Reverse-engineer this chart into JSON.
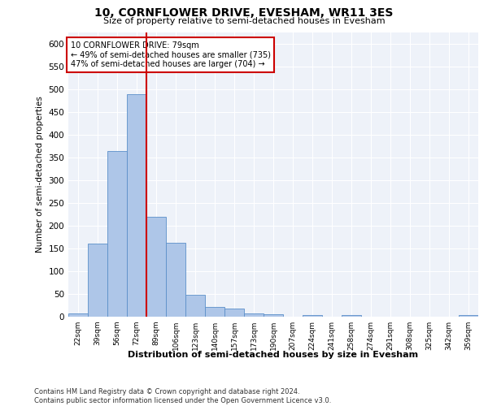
{
  "title": "10, CORNFLOWER DRIVE, EVESHAM, WR11 3ES",
  "subtitle": "Size of property relative to semi-detached houses in Evesham",
  "xlabel": "Distribution of semi-detached houses by size in Evesham",
  "ylabel": "Number of semi-detached properties",
  "footer_line1": "Contains HM Land Registry data © Crown copyright and database right 2024.",
  "footer_line2": "Contains public sector information licensed under the Open Government Licence v3.0.",
  "annotation_title": "10 CORNFLOWER DRIVE: 79sqm",
  "annotation_line1": "← 49% of semi-detached houses are smaller (735)",
  "annotation_line2": "47% of semi-detached houses are larger (704) →",
  "categories": [
    "22sqm",
    "39sqm",
    "56sqm",
    "72sqm",
    "89sqm",
    "106sqm",
    "123sqm",
    "140sqm",
    "157sqm",
    "173sqm",
    "190sqm",
    "207sqm",
    "224sqm",
    "241sqm",
    "258sqm",
    "274sqm",
    "291sqm",
    "308sqm",
    "325sqm",
    "342sqm",
    "359sqm"
  ],
  "values": [
    8,
    160,
    365,
    490,
    220,
    163,
    48,
    22,
    17,
    8,
    5,
    0,
    4,
    0,
    3,
    0,
    0,
    0,
    0,
    0,
    4
  ],
  "bar_color": "#aec6e8",
  "bar_edge_color": "#5b8fc9",
  "vline_color": "#cc0000",
  "vline_x": 3.5,
  "ylim": [
    0,
    625
  ],
  "yticks": [
    0,
    50,
    100,
    150,
    200,
    250,
    300,
    350,
    400,
    450,
    500,
    550,
    600
  ],
  "annotation_box_facecolor": "#ffffff",
  "annotation_box_edgecolor": "#cc0000",
  "plot_bg_color": "#eef2f9",
  "grid_color": "#ffffff",
  "title_fontsize": 10,
  "subtitle_fontsize": 8,
  "ylabel_fontsize": 7.5,
  "xtick_fontsize": 6.5,
  "ytick_fontsize": 7.5,
  "xlabel_fontsize": 8,
  "annotation_fontsize": 7,
  "footer_fontsize": 6
}
